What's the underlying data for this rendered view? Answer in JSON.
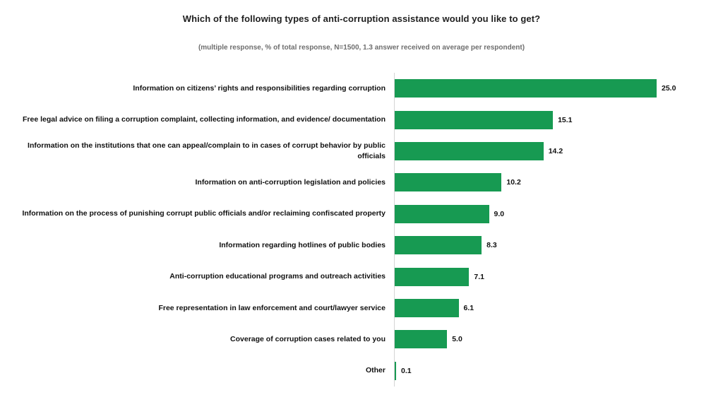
{
  "title": "Which of the following types of anti-corruption assistance would you like to get?",
  "subtitle": "(multiple response, % of total response, N=1500, 1.3 answer received on average per respondent)",
  "chart_data": {
    "type": "bar",
    "orientation": "horizontal",
    "bar_color": "#179a52",
    "xlim": [
      0,
      26
    ],
    "grid": false,
    "legend": "none",
    "categories": [
      "Information on citizens’ rights and responsibilities regarding corruption",
      "Free legal advice on filing a corruption complaint, collecting information, and evidence/ documentation",
      "Information on the institutions that one can appeal/complain to in cases of corrupt behavior by public officials",
      "Information on anti-corruption legislation and policies",
      "Information on the process of punishing corrupt public officials and/or reclaiming confiscated property",
      "Information regarding hotlines of public bodies",
      "Anti-corruption educational programs and outreach activities",
      "Free representation in law enforcement and court/lawyer service",
      "Coverage of corruption cases related to you",
      "Other"
    ],
    "values": [
      25.0,
      15.1,
      14.2,
      10.2,
      9.0,
      8.3,
      7.1,
      6.1,
      5.0,
      0.1
    ],
    "value_labels": [
      "25.0",
      "15.1",
      "14.2",
      "10.2",
      "9.0",
      "8.3",
      "7.1",
      "6.1",
      "5.0",
      "0.1"
    ]
  }
}
